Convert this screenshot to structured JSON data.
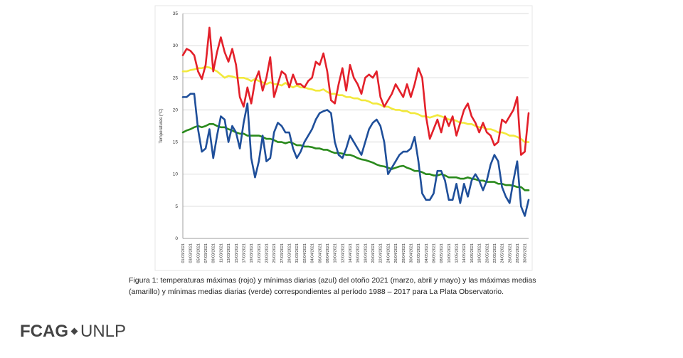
{
  "chart_data": {
    "type": "line",
    "ylabel": "Temperaturas (°C)",
    "caption": "Figura 1: temperaturas máximas (rojo) y mínimas diarias (azul) del otoño 2021 (marzo, abril y mayo) y las máximas medias (amarillo) y mínimas medias diarias (verde) correspondientes al período 1988 – 2017 para La Plata Observatorio.",
    "ylim": [
      0,
      35
    ],
    "yticks": [
      0,
      5,
      10,
      15,
      20,
      25,
      30,
      35
    ],
    "grid": true,
    "categories": [
      "01/03/2021",
      null,
      "03/03/2021",
      null,
      "05/03/2021",
      null,
      "07/03/2021",
      null,
      "09/03/2021",
      null,
      "11/03/2021",
      null,
      "13/03/2021",
      null,
      "15/03/2021",
      null,
      "17/03/2021",
      null,
      "19/03/2021",
      null,
      "21/03/2021",
      null,
      "23/03/2021",
      null,
      "25/03/2021",
      null,
      "27/03/2021",
      null,
      "29/03/2021",
      null,
      "31/03/2021",
      null,
      "02/04/2021",
      null,
      "04/04/2021",
      null,
      "06/04/2021",
      null,
      "08/04/2021",
      null,
      "10/04/2021",
      null,
      "12/04/2021",
      null,
      "14/04/2021",
      null,
      "16/04/2021",
      null,
      "18/04/2021",
      null,
      "20/04/2021",
      null,
      "22/04/2021",
      null,
      "24/04/2021",
      null,
      "26/04/2021",
      null,
      "28/04/2021",
      null,
      "30/04/2021",
      null,
      "02/05/2021",
      null,
      "04/05/2021",
      null,
      "06/05/2021",
      null,
      "08/05/2021",
      null,
      "10/05/2021",
      null,
      "12/05/2021",
      null,
      "14/05/2021",
      null,
      "16/05/2021",
      null,
      "18/05/2021",
      null,
      "20/05/2021",
      null,
      "22/05/2021",
      null,
      "24/05/2021",
      null,
      "26/05/2021",
      null,
      "28/05/2021",
      null,
      "30/05/2021",
      null
    ],
    "series": [
      {
        "color": "#f2e93c",
        "values": [
          26,
          26,
          26.2,
          26.3,
          26.5,
          26.5,
          26.7,
          26.6,
          26.3,
          26,
          25.5,
          25,
          25.3,
          25.2,
          25,
          25,
          25,
          24.8,
          24.5,
          24.8,
          24.5,
          24.3,
          24,
          24.3,
          24,
          24,
          23.8,
          24.2,
          23.8,
          23.5,
          23.8,
          23.5,
          23.5,
          23.3,
          23.2,
          23,
          23,
          23.2,
          22.8,
          22.5,
          22.5,
          22.3,
          22.3,
          22,
          22,
          21.8,
          21.8,
          21.5,
          21.5,
          21.3,
          21,
          21,
          20.8,
          20.5,
          20.5,
          20.2,
          20,
          20,
          19.8,
          19.8,
          19.5,
          19.5,
          19.3,
          19,
          19,
          18.8,
          19,
          19.2,
          19,
          18.8,
          18.5,
          18.5,
          18.3,
          18,
          18,
          17.8,
          17.8,
          17.5,
          17.3,
          17.3,
          17,
          17,
          16.8,
          16.5,
          16.5,
          16.3,
          16,
          16,
          15.8,
          15.5,
          15,
          15
        ]
      },
      {
        "color": "#2a8a1c",
        "values": [
          16.5,
          16.8,
          17,
          17.3,
          17.5,
          17.3,
          17.5,
          17.8,
          17.8,
          17.5,
          17.3,
          17.3,
          17,
          16.8,
          16.5,
          16.3,
          16.3,
          16,
          16,
          16,
          16,
          15.8,
          15.5,
          15.5,
          15.3,
          15,
          15,
          14.8,
          15,
          14.8,
          14.5,
          14.5,
          14.3,
          14.3,
          14.2,
          14,
          14,
          13.8,
          13.8,
          13.5,
          13.3,
          13.3,
          13.2,
          13,
          13,
          12.8,
          12.5,
          12.3,
          12.2,
          12,
          11.8,
          11.5,
          11.3,
          11.2,
          11,
          10.8,
          11,
          11.2,
          11.3,
          11,
          10.8,
          10.5,
          10.5,
          10.3,
          10,
          10,
          9.8,
          9.8,
          10,
          9.8,
          9.5,
          9.5,
          9.5,
          9.3,
          9.3,
          9.5,
          9.3,
          9.2,
          9,
          9,
          8.8,
          8.8,
          8.8,
          8.5,
          8.5,
          8.3,
          8.3,
          8.2,
          8,
          8,
          7.5,
          7.5
        ]
      },
      {
        "color": "#e3202a",
        "values": [
          28.5,
          29.5,
          29.2,
          28.5,
          26,
          24.8,
          27,
          32.8,
          26,
          29,
          31.3,
          29,
          27.5,
          29.5,
          27,
          22,
          20.5,
          23.5,
          21,
          24.5,
          26,
          23,
          25,
          28.2,
          22,
          24,
          26,
          25.5,
          23.5,
          25.5,
          24,
          24,
          23.5,
          24.5,
          25,
          27.5,
          27,
          28.8,
          26,
          21.5,
          21,
          24,
          26.5,
          23,
          27,
          25,
          24,
          22.5,
          25,
          25.5,
          25,
          26,
          22,
          20.5,
          21.5,
          22.5,
          24,
          23,
          22,
          24,
          22,
          24,
          26.5,
          25,
          19,
          15.5,
          17,
          18.5,
          16.5,
          19,
          17.5,
          19,
          16,
          18,
          20,
          21,
          19,
          18,
          16.5,
          18,
          16.5,
          16,
          14.5,
          15,
          18.5,
          18,
          19,
          20,
          22,
          13,
          13.5,
          19.5
        ]
      },
      {
        "color": "#1f4f9a",
        "values": [
          22,
          22,
          22.5,
          22.5,
          17,
          13.5,
          14,
          17,
          12.5,
          16,
          19,
          18.5,
          15,
          17.5,
          16.5,
          14,
          18,
          21,
          12.5,
          9.5,
          12,
          16,
          12,
          12.5,
          16.5,
          18,
          17.5,
          16.5,
          16.5,
          14,
          12.5,
          13.5,
          15,
          16,
          17,
          18.5,
          19.5,
          19.8,
          20,
          19.5,
          15,
          13,
          12.5,
          14,
          16,
          15,
          14,
          13,
          15,
          17,
          18,
          18.5,
          17.5,
          15,
          10,
          11,
          12,
          13,
          13.5,
          13.5,
          14,
          15.8,
          12,
          7,
          6,
          6,
          7,
          10.5,
          10.5,
          9,
          6,
          6,
          8.5,
          5.5,
          8.5,
          6.5,
          9,
          10,
          9,
          7.5,
          9,
          11.5,
          13,
          12,
          8,
          6.5,
          5.5,
          9,
          12,
          5,
          3.5,
          6
        ]
      }
    ]
  },
  "logo": {
    "left": "FCAG",
    "right": "UNLP"
  }
}
